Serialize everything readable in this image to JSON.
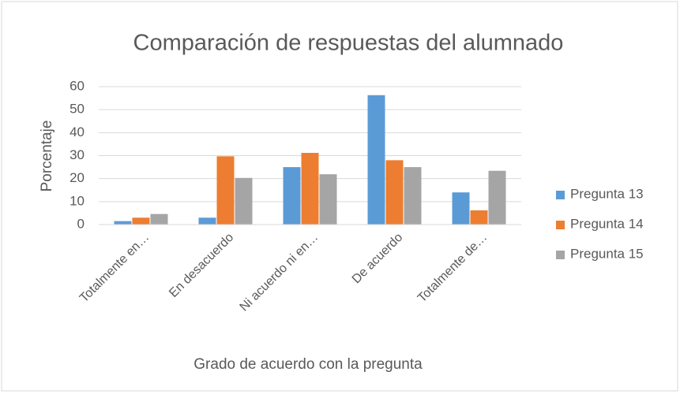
{
  "chart_data": {
    "type": "bar",
    "title": "Comparación de respuestas del alumnado",
    "x_label": "Grado de acuerdo con la pregunta",
    "y_label": "Porcentaje",
    "categories": [
      "Totalmente en…",
      "En desacuerdo",
      "Ni acuerdo ni en…",
      "De acuerdo",
      "Totalmente de…"
    ],
    "series": [
      {
        "name": "Pregunta 13",
        "color": "#5b9bd5",
        "values": [
          1.5,
          3,
          25,
          56.3,
          14
        ]
      },
      {
        "name": "Pregunta 14",
        "color": "#ed7d31",
        "values": [
          3,
          29.7,
          31.2,
          28,
          6.2
        ]
      },
      {
        "name": "Pregunta 15",
        "color": "#a5a5a5",
        "values": [
          4.6,
          20.3,
          21.9,
          25,
          23.4
        ]
      }
    ],
    "ylim": [
      0,
      60
    ],
    "yticks": [
      0,
      10,
      20,
      30,
      40,
      50,
      60
    ],
    "grid": true,
    "legend": "right"
  }
}
